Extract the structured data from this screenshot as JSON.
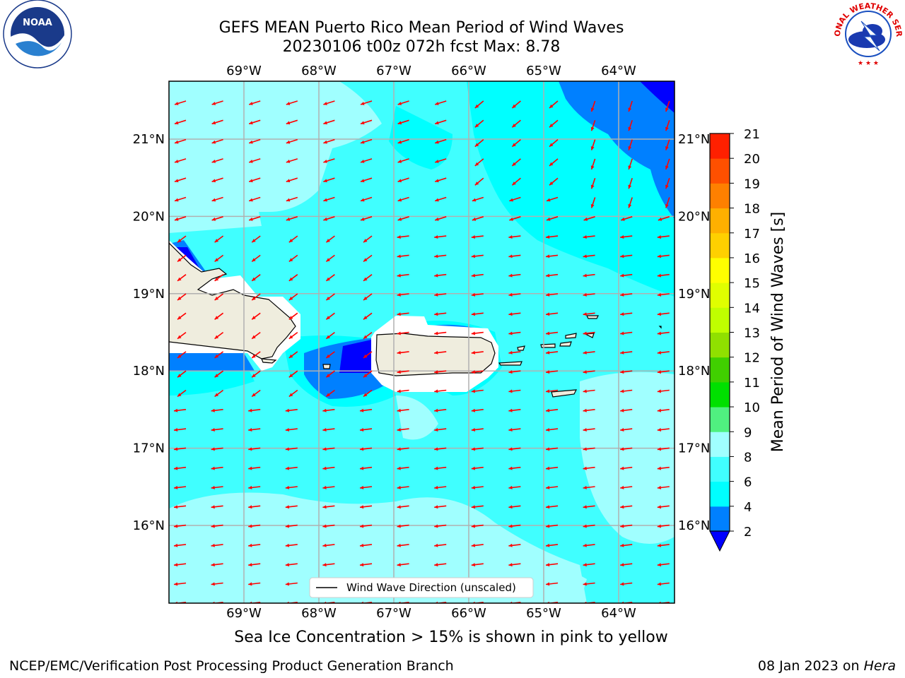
{
  "title": {
    "line1": "GEFS MEAN Puerto Rico Mean Period of Wind Waves",
    "line2": "20230106 t00z 072h fcst   Max: 8.78"
  },
  "map": {
    "lon_ticks": [
      "69°W",
      "68°W",
      "67°W",
      "66°W",
      "65°W",
      "64°W"
    ],
    "lat_ticks": [
      "21°N",
      "20°N",
      "19°N",
      "18°N",
      "17°N",
      "16°N"
    ],
    "legend_label": "Wind Wave Direction (unscaled)",
    "arrow_color": "#ff0000",
    "land_color": "#efedde"
  },
  "colorbar": {
    "label": "Mean Period of Wind Waves [s]",
    "ticks": [
      "2",
      "4",
      "6",
      "8",
      "9",
      "10",
      "11",
      "12",
      "13",
      "14",
      "15",
      "16",
      "17",
      "18",
      "19",
      "20",
      "21"
    ],
    "colors": [
      "#0080ff",
      "#00ffff",
      "#40ffff",
      "#a0ffff",
      "#50f080",
      "#00e000",
      "#40d000",
      "#90e000",
      "#c0ff00",
      "#e0ff00",
      "#ffff00",
      "#ffd000",
      "#ffb000",
      "#ff8000",
      "#ff5000",
      "#ff2000"
    ],
    "extend_color": "#0000ff"
  },
  "note": "Sea Ice Concentration > 15% is shown in pink to yellow",
  "footer": {
    "left": "NCEP/EMC/Verification Post Processing Product Generation Branch",
    "date": "08 Jan 2023 on",
    "machine": "Hera"
  },
  "logos": {
    "noaa": "NOAA",
    "nws": "NATIONAL WEATHER SERVICE"
  }
}
